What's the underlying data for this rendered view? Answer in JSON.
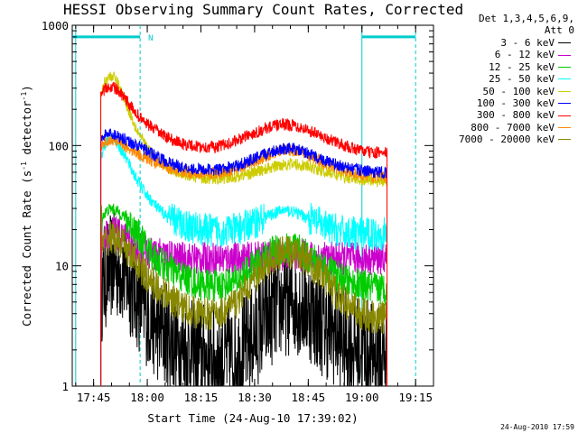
{
  "chart_data": {
    "type": "line",
    "title": "HESSI Observing Summary Count Rates, Corrected",
    "xlabel": "Start Time (24-Aug-10 17:39:02)",
    "ylabel": "Corrected Count Rate (s",
    "ylabel_sup1": "-1",
    "ylabel_mid": " detector",
    "ylabel_sup2": "-1",
    "ylabel_end": ")",
    "x_ticks": [
      "17:45",
      "18:00",
      "18:15",
      "18:30",
      "18:45",
      "19:00",
      "19:15"
    ],
    "y_ticks": [
      "1",
      "10",
      "100",
      "1000"
    ],
    "y_scale": "log",
    "xlim": [
      "17:39:02",
      "19:20"
    ],
    "ylim": [
      1,
      1000
    ],
    "legend_header": [
      "Det 1,3,4,5,6,9,",
      "Att 0"
    ],
    "legend_placement": "right",
    "series": [
      {
        "name": "3 - 6 keV",
        "color": "#000000",
        "x": [
          "17:47",
          "17:48",
          "17:49",
          "17:50",
          "17:51",
          "17:52",
          "17:53",
          "17:54",
          "17:56",
          "17:58",
          "18:00",
          "18:03",
          "18:06",
          "18:10",
          "18:15",
          "18:20",
          "18:25",
          "18:30",
          "18:33",
          "18:36",
          "18:39",
          "18:42",
          "18:45",
          "18:48",
          "18:51",
          "18:55",
          "19:00",
          "19:04",
          "19:07"
        ],
        "y": [
          6,
          7.5,
          9,
          10,
          10,
          9.5,
          9,
          8,
          6.5,
          5,
          4,
          3,
          2.6,
          2,
          1.8,
          1.7,
          1.8,
          2.6,
          3.5,
          4.5,
          5,
          5,
          4.5,
          3.5,
          3,
          2.4,
          2,
          1.8,
          1.7
        ]
      },
      {
        "name": "6 - 12 keV",
        "color": "#cc00cc",
        "x": [
          "17:47",
          "17:48",
          "17:49",
          "17:50",
          "17:51",
          "17:52",
          "17:53",
          "17:55",
          "17:58",
          "18:00",
          "18:05",
          "18:10",
          "18:15",
          "18:20",
          "18:25",
          "18:30",
          "18:35",
          "18:38",
          "18:41",
          "18:45",
          "18:50",
          "18:55",
          "19:00",
          "19:04",
          "19:07"
        ],
        "y": [
          16,
          17,
          18.5,
          19,
          19,
          18,
          17,
          15.5,
          14,
          13,
          12,
          11.5,
          11.5,
          11.5,
          11.5,
          11.5,
          12,
          12.5,
          12.5,
          12,
          11.5,
          11.5,
          11.5,
          11.5,
          11.5
        ]
      },
      {
        "name": "12 - 25 keV",
        "color": "#00cc00",
        "x": [
          "17:47",
          "17:48",
          "17:49",
          "17:50",
          "17:51",
          "17:52",
          "17:54",
          "17:56",
          "17:58",
          "18:00",
          "18:03",
          "18:06",
          "18:10",
          "18:15",
          "18:20",
          "18:25",
          "18:30",
          "18:35",
          "18:38",
          "18:41",
          "18:45",
          "18:50",
          "18:55",
          "19:00",
          "19:04",
          "19:07"
        ],
        "y": [
          24,
          27,
          29,
          30,
          29,
          28,
          25,
          21,
          17,
          14,
          11,
          9.5,
          8,
          7,
          6.8,
          7.5,
          10,
          13,
          14,
          14,
          12,
          9.5,
          7.5,
          6.8,
          6.5,
          6.5
        ]
      },
      {
        "name": "25 - 50 keV",
        "color": "#00ffff",
        "x": [
          "17:47",
          "17:48",
          "17:49",
          "17:50",
          "17:51",
          "17:52",
          "17:54",
          "17:56",
          "17:58",
          "18:00",
          "18:03",
          "18:06",
          "18:10",
          "18:15",
          "18:20",
          "18:25",
          "18:30",
          "18:35",
          "18:38",
          "18:41",
          "18:45",
          "18:50",
          "18:55",
          "19:00",
          "19:04",
          "19:07"
        ],
        "y": [
          80,
          100,
          112,
          115,
          112,
          100,
          80,
          60,
          47,
          38,
          30,
          25,
          22,
          20,
          19.5,
          20,
          23,
          27,
          29,
          28,
          25,
          21,
          19,
          18.5,
          18.5,
          18.5
        ]
      },
      {
        "name": "50 - 100 keV",
        "color": "#cccc00",
        "x": [
          "17:47",
          "17:48",
          "17:49",
          "17:50",
          "17:51",
          "17:52",
          "17:54",
          "17:56",
          "17:58",
          "18:00",
          "18:03",
          "18:06",
          "18:10",
          "18:15",
          "18:20",
          "18:25",
          "18:30",
          "18:35",
          "18:38",
          "18:41",
          "18:45",
          "18:50",
          "18:55",
          "19:00",
          "19:04",
          "19:07"
        ],
        "y": [
          260,
          330,
          370,
          380,
          360,
          320,
          230,
          160,
          120,
          95,
          75,
          65,
          58,
          54,
          53,
          55,
          60,
          66,
          70,
          70,
          67,
          60,
          55,
          52,
          51,
          51
        ]
      },
      {
        "name": "100 - 300 keV",
        "color": "#0000ff",
        "x": [
          "17:47",
          "17:48",
          "17:49",
          "17:50",
          "17:51",
          "17:52",
          "17:54",
          "17:56",
          "17:58",
          "18:00",
          "18:03",
          "18:06",
          "18:10",
          "18:15",
          "18:20",
          "18:25",
          "18:30",
          "18:35",
          "18:38",
          "18:41",
          "18:45",
          "18:50",
          "18:55",
          "19:00",
          "19:04",
          "19:07"
        ],
        "y": [
          115,
          122,
          125,
          125,
          123,
          120,
          112,
          104,
          97,
          90,
          80,
          72,
          66,
          63,
          63,
          68,
          78,
          90,
          95,
          94,
          86,
          74,
          66,
          62,
          60,
          60
        ]
      },
      {
        "name": "300 - 800 keV",
        "color": "#ff0000",
        "x": [
          "17:47",
          "17:48",
          "17:49",
          "17:50",
          "17:51",
          "17:52",
          "17:54",
          "17:56",
          "17:58",
          "18:00",
          "18:03",
          "18:06",
          "18:10",
          "18:15",
          "18:20",
          "18:25",
          "18:30",
          "18:35",
          "18:38",
          "18:41",
          "18:45",
          "18:50",
          "18:55",
          "19:00",
          "19:04",
          "19:07"
        ],
        "y": [
          250,
          290,
          305,
          310,
          300,
          280,
          240,
          200,
          170,
          150,
          130,
          115,
          103,
          97,
          98,
          110,
          128,
          145,
          150,
          148,
          135,
          115,
          100,
          90,
          87,
          87
        ]
      },
      {
        "name": "800 - 7000 keV",
        "color": "#ff8800",
        "x": [
          "17:47",
          "17:48",
          "17:49",
          "17:50",
          "17:51",
          "17:52",
          "17:54",
          "17:56",
          "17:58",
          "18:00",
          "18:03",
          "18:06",
          "18:10",
          "18:15",
          "18:20",
          "18:25",
          "18:30",
          "18:35",
          "18:38",
          "18:41",
          "18:45",
          "18:50",
          "18:55",
          "19:00",
          "19:04",
          "19:07"
        ],
        "y": [
          100,
          106,
          110,
          112,
          110,
          106,
          98,
          90,
          84,
          78,
          70,
          65,
          61,
          59,
          59,
          63,
          73,
          86,
          92,
          91,
          83,
          70,
          62,
          57,
          55,
          55
        ]
      },
      {
        "name": "7000 - 20000 keV",
        "color": "#888800",
        "x": [
          "17:47",
          "17:48",
          "17:49",
          "17:50",
          "17:51",
          "17:52",
          "17:54",
          "17:56",
          "17:58",
          "18:00",
          "18:03",
          "18:06",
          "18:10",
          "18:15",
          "18:20",
          "18:25",
          "18:30",
          "18:35",
          "18:38",
          "18:41",
          "18:45",
          "18:50",
          "18:55",
          "19:00",
          "19:04",
          "19:07"
        ],
        "y": [
          14,
          15.5,
          17,
          17.5,
          17,
          16,
          14,
          11.5,
          9.5,
          8,
          6.5,
          5.5,
          4.5,
          4,
          4,
          5,
          8,
          11.5,
          13,
          13,
          11,
          7.5,
          5,
          4,
          3.7,
          3.7
        ]
      }
    ],
    "flags": {
      "color": "#00cccc",
      "bars": [
        [
          "17:39:02",
          "17:58"
        ],
        [
          "19:00",
          "19:15"
        ]
      ],
      "bar_level": 800,
      "label": "N",
      "label_at": "18:00",
      "dashed_lines": [
        "17:58",
        "19:15"
      ],
      "solid_lines": [
        "17:40",
        "19:00"
      ]
    },
    "grid": false
  },
  "footer": {
    "timestamp": "24-Aug-2010 17:59"
  }
}
